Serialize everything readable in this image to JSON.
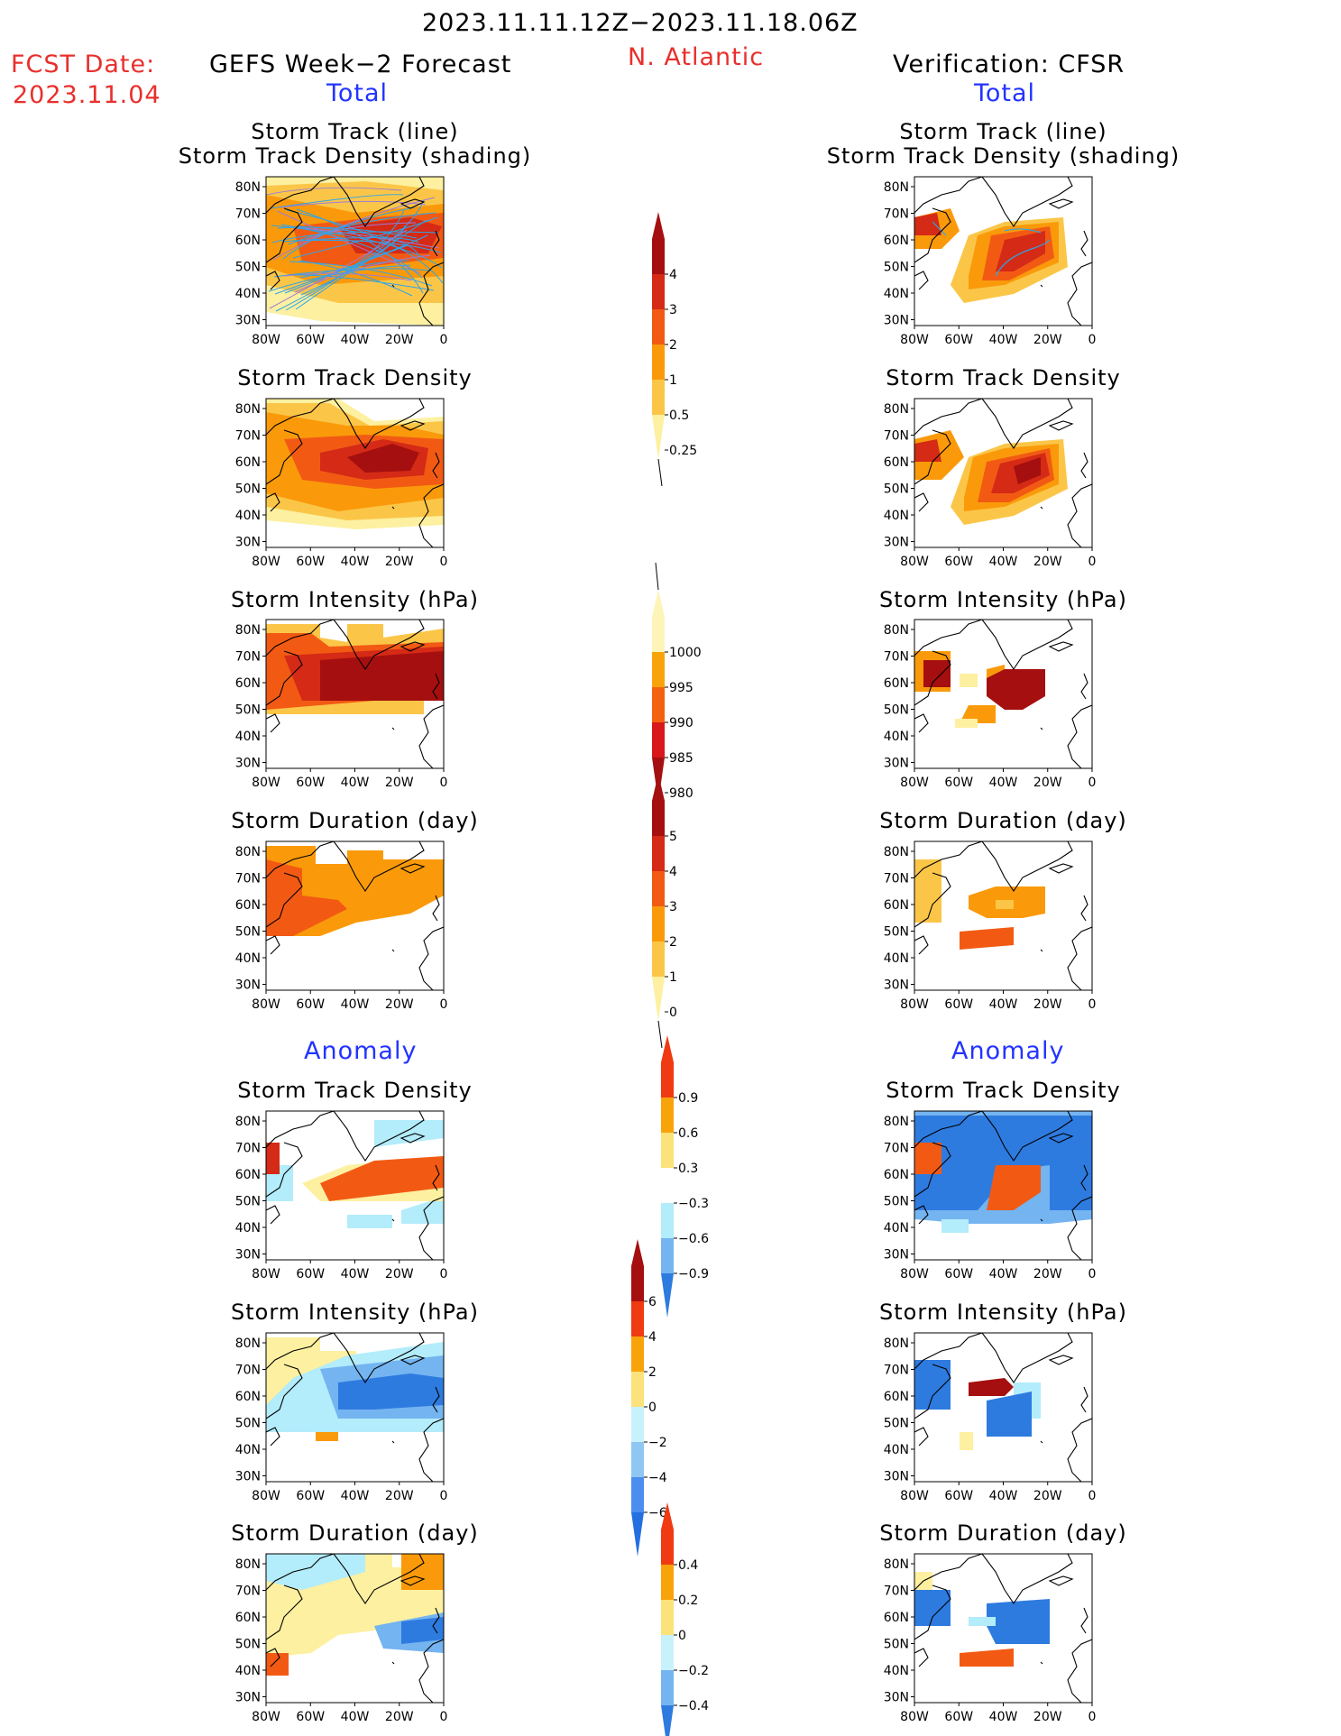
{
  "header": {
    "date_range": "2023.11.11.12Z−2023.11.18.06Z",
    "fcst_label": "FCST Date:",
    "fcst_date": "2023.11.04",
    "left_title": "GEFS Week−2 Forecast",
    "region": "N. Atlantic",
    "right_title": "Verification: CFSR",
    "total_label": "Total",
    "anomaly_label": "Anomaly"
  },
  "panels": [
    {
      "id": "total-track",
      "title1": "Storm Track (line)",
      "title2": "Storm Track Density (shading)"
    },
    {
      "id": "total-density",
      "title1": "Storm Track Density"
    },
    {
      "id": "total-intensity",
      "title1": "Storm Intensity (hPa)"
    },
    {
      "id": "total-duration",
      "title1": "Storm Duration (day)"
    },
    {
      "id": "anom-density",
      "title1": "Storm Track Density"
    },
    {
      "id": "anom-intensity",
      "title1": "Storm Intensity (hPa)"
    },
    {
      "id": "anom-duration",
      "title1": "Storm Duration (day)"
    }
  ],
  "map_axes": {
    "lat_labels": [
      "80N",
      "70N",
      "60N",
      "50N",
      "40N",
      "30N"
    ],
    "lon_labels": [
      "80W",
      "60W",
      "40W",
      "20W",
      "0"
    ]
  },
  "colorbars": [
    {
      "id": "density-bar",
      "labels": [
        "4",
        "3",
        "2",
        "1",
        "0.5",
        "0.25"
      ],
      "colors": [
        "#a50f0f",
        "#d42a16",
        "#f25a14",
        "#fa9a0a",
        "#fbc648",
        "#fdf0a0"
      ]
    },
    {
      "id": "intensity-bar",
      "labels": [
        "1000",
        "995",
        "990",
        "985",
        "980"
      ],
      "colors": [
        "#fdf5b8",
        "#f9a30b",
        "#f5620f",
        "#d8181a",
        "#a50f0f"
      ]
    },
    {
      "id": "duration-bar",
      "labels": [
        "5",
        "4",
        "3",
        "2",
        "1",
        "0"
      ],
      "colors": [
        "#a50f0f",
        "#d42a16",
        "#f25a14",
        "#fa9a0a",
        "#fbc648",
        "#fdf0a0"
      ]
    },
    {
      "id": "anom-density-bar",
      "labels": [
        "0.9",
        "0.6",
        "0.3",
        "−0.3",
        "−0.6",
        "−0.9"
      ],
      "colors": [
        "#f03a12",
        "#f9a30b",
        "#fbe27a",
        "#ffffff",
        "#b3ecfa",
        "#74b4f0",
        "#2e7be0"
      ]
    },
    {
      "id": "anom-intensity-bar",
      "labels": [
        "6",
        "4",
        "2",
        "0",
        "−2",
        "−4",
        "−6"
      ],
      "colors": [
        "#a50f0f",
        "#f03a12",
        "#f9a30b",
        "#fbe27a",
        "#c8f2fb",
        "#8fc6f2",
        "#4a8ef0",
        "#2470e0"
      ]
    },
    {
      "id": "anom-duration-bar",
      "labels": [
        "0.4",
        "0.2",
        "0",
        "−0.2",
        "−0.4"
      ],
      "colors": [
        "#f03a12",
        "#f9a30b",
        "#fbe27a",
        "#c8f2fb",
        "#74b4f0",
        "#2e7be0"
      ]
    }
  ],
  "colors": {
    "dark_red": "#a50f0f",
    "red": "#d42a16",
    "orange_red": "#f25a14",
    "orange": "#fa9a0a",
    "light_orange": "#fbc648",
    "pale_yellow": "#fdf0a0",
    "light_blue": "#b3ecfa",
    "mid_blue": "#74b4f0",
    "blue": "#2e7be0",
    "track_line": "#2ea4ea"
  }
}
